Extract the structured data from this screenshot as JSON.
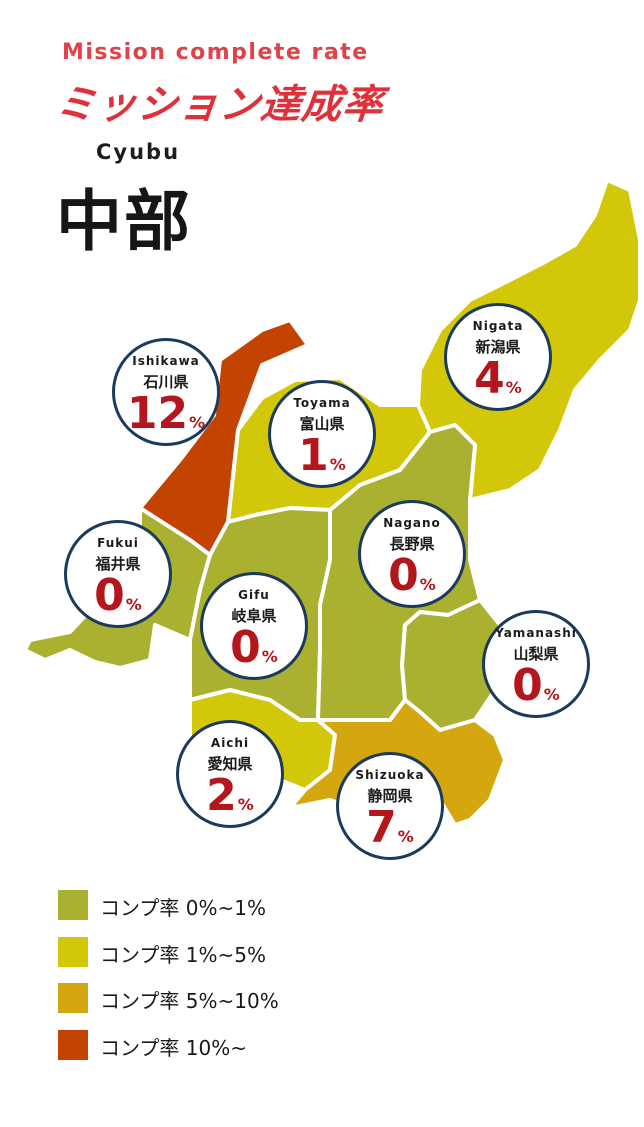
{
  "header": {
    "title_en": "Mission complete rate",
    "title_jp": "ミッション達成率"
  },
  "region": {
    "name_en": "Cyubu",
    "name_jp": "中部"
  },
  "colors": {
    "band_0_1": "#aab02f",
    "band_1_5": "#d3c70a",
    "band_5_10": "#d4a60f",
    "band_10_plus": "#c24400",
    "badge_border": "#1b3a5c",
    "rate_text": "#b3161c",
    "title_red": "#e0303a"
  },
  "prefectures": [
    {
      "id": "ishikawa",
      "name_en": "Ishikawa",
      "name_jp": "石川県",
      "rate": "12",
      "unit": "%",
      "band": "band_10_plus"
    },
    {
      "id": "toyama",
      "name_en": "Toyama",
      "name_jp": "富山県",
      "rate": "1",
      "unit": "%",
      "band": "band_1_5"
    },
    {
      "id": "niigata",
      "name_en": "Nigata",
      "name_jp": "新潟県",
      "rate": "4",
      "unit": "%",
      "band": "band_1_5"
    },
    {
      "id": "fukui",
      "name_en": "Fukui",
      "name_jp": "福井県",
      "rate": "0",
      "unit": "%",
      "band": "band_0_1"
    },
    {
      "id": "nagano",
      "name_en": "Nagano",
      "name_jp": "長野県",
      "rate": "0",
      "unit": "%",
      "band": "band_0_1"
    },
    {
      "id": "gifu",
      "name_en": "Gifu",
      "name_jp": "岐阜県",
      "rate": "0",
      "unit": "%",
      "band": "band_0_1"
    },
    {
      "id": "yamanashi",
      "name_en": "Yamanashi",
      "name_jp": "山梨県",
      "rate": "0",
      "unit": "%",
      "band": "band_0_1"
    },
    {
      "id": "aichi",
      "name_en": "Aichi",
      "name_jp": "愛知県",
      "rate": "2",
      "unit": "%",
      "band": "band_1_5"
    },
    {
      "id": "shizuoka",
      "name_en": "Shizuoka",
      "name_jp": "静岡県",
      "rate": "7",
      "unit": "%",
      "band": "band_5_10"
    }
  ],
  "legend": [
    {
      "label": "コンプ率 0%~1%",
      "color": "#aab02f"
    },
    {
      "label": "コンプ率 1%~5%",
      "color": "#d3c70a"
    },
    {
      "label": "コンプ率 5%~10%",
      "color": "#d4a60f"
    },
    {
      "label": "コンプ率 10%~",
      "color": "#c24400"
    }
  ]
}
